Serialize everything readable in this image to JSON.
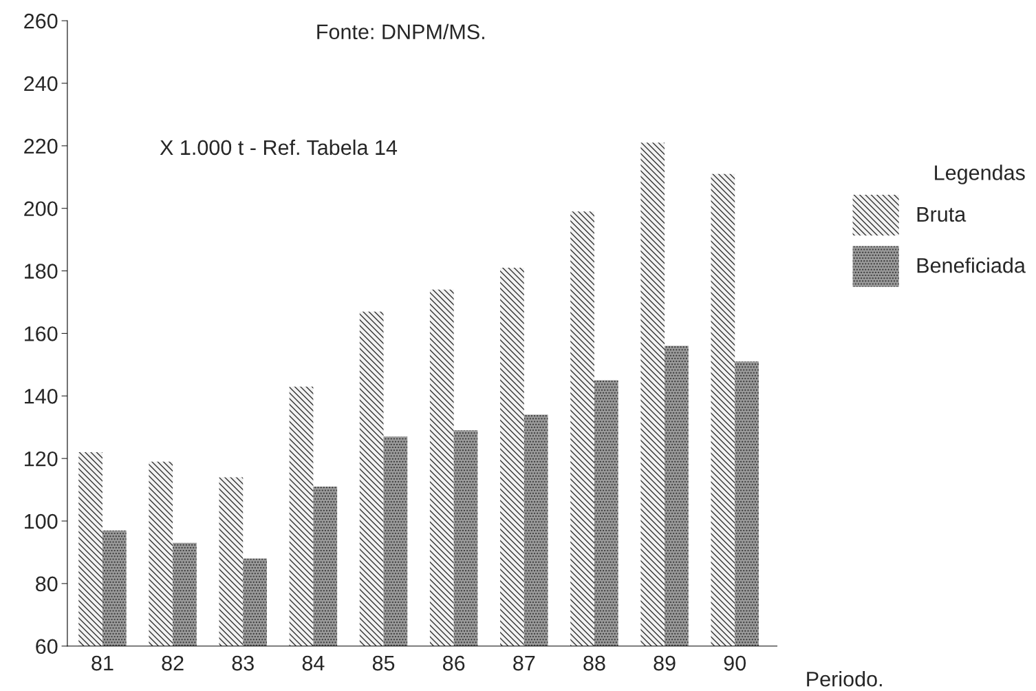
{
  "chart_data": {
    "type": "bar",
    "categories": [
      "81",
      "82",
      "83",
      "84",
      "85",
      "86",
      "87",
      "88",
      "89",
      "90"
    ],
    "series": [
      {
        "name": "Bruta",
        "color": "#f2f2f2",
        "values": [
          122,
          119,
          114,
          143,
          167,
          174,
          181,
          199,
          221,
          211
        ]
      },
      {
        "name": "Beneficiada",
        "color": "#9a9a9a",
        "values": [
          97,
          93,
          88,
          111,
          127,
          129,
          134,
          145,
          156,
          151
        ]
      }
    ],
    "xlabel": "Periodo.",
    "legend_title": "Legendas",
    "legend": "right",
    "annotations": [
      "Fonte: DNPM/MS.",
      "X 1.000 t - Ref. Tabela 14"
    ],
    "ylim": [
      60,
      260
    ],
    "yticks": [
      60,
      80,
      100,
      120,
      140,
      160,
      180,
      200,
      220,
      240,
      260
    ],
    "grid": false
  }
}
